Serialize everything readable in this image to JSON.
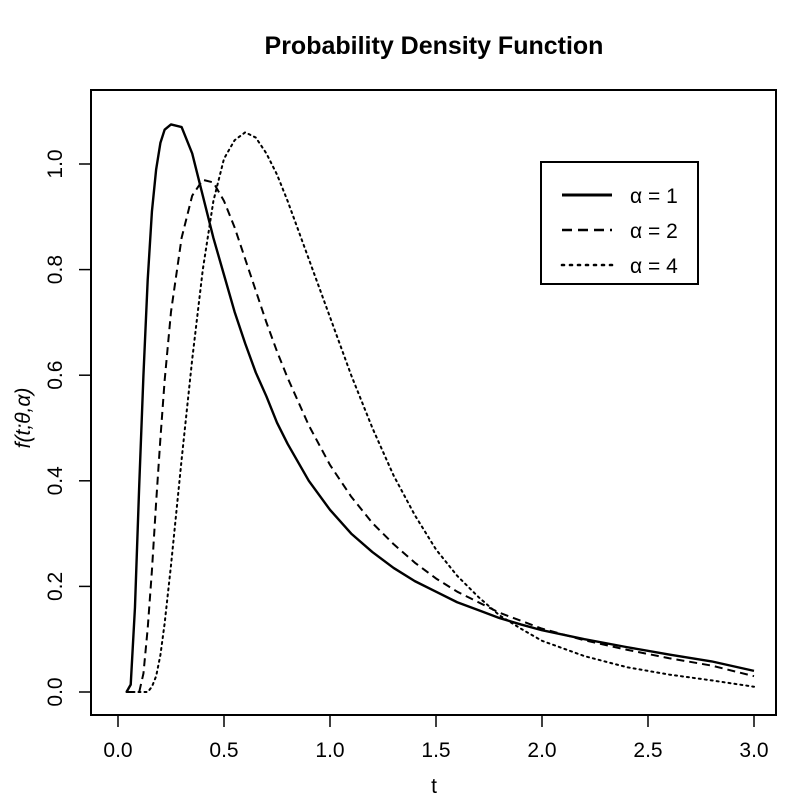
{
  "chart_data": {
    "type": "line",
    "title": "Probability Density Function",
    "xlabel": "t",
    "ylabel": "f(t;θ,α)",
    "xlim": [
      0.0,
      3.0
    ],
    "ylim": [
      0.0,
      1.1
    ],
    "x_ticks": [
      "0.0",
      "0.5",
      "1.0",
      "1.5",
      "2.0",
      "2.5",
      "3.0"
    ],
    "y_ticks": [
      "0.0",
      "0.2",
      "0.4",
      "0.6",
      "0.8",
      "1.0"
    ],
    "grid": false,
    "legend_position": "top-right",
    "x": [
      0.04,
      0.06,
      0.08,
      0.1,
      0.12,
      0.14,
      0.16,
      0.18,
      0.2,
      0.22,
      0.25,
      0.3,
      0.35,
      0.4,
      0.45,
      0.5,
      0.55,
      0.6,
      0.65,
      0.7,
      0.75,
      0.8,
      0.9,
      1.0,
      1.1,
      1.2,
      1.3,
      1.4,
      1.5,
      1.6,
      1.7,
      1.8,
      1.9,
      2.0,
      2.2,
      2.4,
      2.6,
      2.8,
      3.0
    ],
    "series": [
      {
        "name": "α = 1",
        "style": "solid",
        "values": [
          0.0,
          0.014,
          0.16,
          0.39,
          0.6,
          0.78,
          0.91,
          0.99,
          1.04,
          1.065,
          1.075,
          1.07,
          1.02,
          0.94,
          0.86,
          0.79,
          0.72,
          0.66,
          0.605,
          0.56,
          0.51,
          0.47,
          0.4,
          0.345,
          0.3,
          0.265,
          0.235,
          0.21,
          0.19,
          0.17,
          0.155,
          0.14,
          0.128,
          0.117,
          0.1,
          0.085,
          0.071,
          0.058,
          0.04
        ]
      },
      {
        "name": "α = 2",
        "style": "dashed",
        "values": [
          0.0,
          0.0,
          0.0,
          0.0,
          0.035,
          0.12,
          0.23,
          0.36,
          0.48,
          0.59,
          0.72,
          0.86,
          0.94,
          0.97,
          0.965,
          0.93,
          0.88,
          0.82,
          0.76,
          0.7,
          0.645,
          0.595,
          0.505,
          0.43,
          0.37,
          0.32,
          0.28,
          0.245,
          0.215,
          0.19,
          0.17,
          0.15,
          0.135,
          0.12,
          0.098,
          0.08,
          0.064,
          0.05,
          0.03
        ]
      },
      {
        "name": "α = 4",
        "style": "dotted",
        "values": [
          0.0,
          0.0,
          0.0,
          0.0,
          0.0,
          0.0,
          0.01,
          0.03,
          0.07,
          0.13,
          0.24,
          0.44,
          0.63,
          0.8,
          0.93,
          1.01,
          1.045,
          1.06,
          1.05,
          1.02,
          0.98,
          0.93,
          0.82,
          0.71,
          0.6,
          0.5,
          0.41,
          0.335,
          0.27,
          0.22,
          0.18,
          0.145,
          0.12,
          0.097,
          0.068,
          0.047,
          0.033,
          0.022,
          0.01
        ]
      }
    ]
  }
}
